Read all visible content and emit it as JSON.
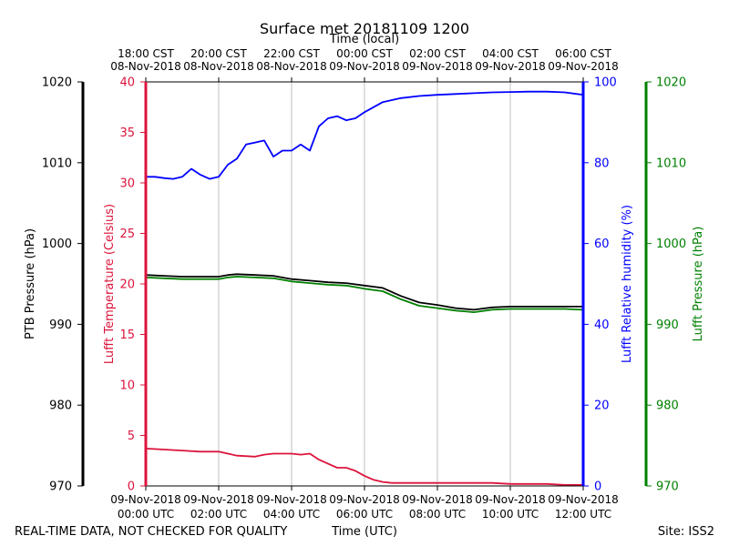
{
  "chart_data": {
    "type": "line",
    "title": "Surface met 20181109 1200",
    "top_axis_label": "Time (local)",
    "xlabel": "Time (UTC)",
    "footer_left": "REAL-TIME DATA, NOT CHECKED FOR QUALITY",
    "footer_right": "Site: ISS2",
    "x_range_hours": [
      0,
      12
    ],
    "x_ticks_utc": [
      {
        "hour": 0,
        "line1": "09-Nov-2018",
        "line2": "00:00 UTC"
      },
      {
        "hour": 2,
        "line1": "09-Nov-2018",
        "line2": "02:00 UTC"
      },
      {
        "hour": 4,
        "line1": "09-Nov-2018",
        "line2": "04:00 UTC"
      },
      {
        "hour": 6,
        "line1": "09-Nov-2018",
        "line2": "06:00 UTC"
      },
      {
        "hour": 8,
        "line1": "09-Nov-2018",
        "line2": "08:00 UTC"
      },
      {
        "hour": 10,
        "line1": "09-Nov-2018",
        "line2": "10:00 UTC"
      },
      {
        "hour": 12,
        "line1": "09-Nov-2018",
        "line2": "12:00 UTC"
      }
    ],
    "x_ticks_local": [
      {
        "hour": 0,
        "line1": "18:00 CST",
        "line2": "08-Nov-2018"
      },
      {
        "hour": 2,
        "line1": "20:00 CST",
        "line2": "08-Nov-2018"
      },
      {
        "hour": 4,
        "line1": "22:00 CST",
        "line2": "08-Nov-2018"
      },
      {
        "hour": 6,
        "line1": "00:00 CST",
        "line2": "09-Nov-2018"
      },
      {
        "hour": 8,
        "line1": "02:00 CST",
        "line2": "09-Nov-2018"
      },
      {
        "hour": 10,
        "line1": "04:00 CST",
        "line2": "09-Nov-2018"
      },
      {
        "hour": 12,
        "line1": "06:00 CST",
        "line2": "09-Nov-2018"
      }
    ],
    "axes": {
      "ptb_pressure": {
        "label": "PTB Pressure (hPa)",
        "ylim": [
          970,
          1020
        ],
        "ticks": [
          "970",
          "980",
          "990",
          "1000",
          "1010",
          "1020"
        ],
        "color": "#000000"
      },
      "temperature": {
        "label": "Lufft Temperature (Celsius)",
        "ylim": [
          0,
          40
        ],
        "ticks": [
          "0",
          "5",
          "10",
          "15",
          "20",
          "25",
          "30",
          "35",
          "40"
        ],
        "color": "#dc143c"
      },
      "humidity": {
        "label": "Lufft Relative humidity (%)",
        "ylim": [
          0,
          100
        ],
        "ticks": [
          "0",
          "20",
          "40",
          "60",
          "80",
          "100"
        ],
        "color": "#0000ff"
      },
      "lufft_pressure": {
        "label": "Lufft Pressure (hPa)",
        "ylim": [
          970,
          1020
        ],
        "ticks": [
          "970",
          "980",
          "990",
          "1000",
          "1010",
          "1020"
        ],
        "color": "#008000"
      }
    },
    "series": [
      {
        "name": "Lufft Relative humidity",
        "axis": "humidity",
        "color": "#0000ff",
        "x": [
          0,
          0.25,
          0.5,
          0.75,
          1.0,
          1.25,
          1.5,
          1.75,
          2.0,
          2.25,
          2.5,
          2.75,
          3.0,
          3.25,
          3.5,
          3.75,
          4.0,
          4.25,
          4.5,
          4.75,
          5.0,
          5.25,
          5.5,
          5.75,
          6.0,
          6.5,
          7.0,
          7.5,
          8.0,
          8.5,
          9.0,
          9.5,
          10.0,
          10.5,
          11.0,
          11.5,
          12.0
        ],
        "values": [
          76.5,
          76.5,
          76.2,
          76.0,
          76.5,
          78.5,
          77.0,
          76.0,
          76.5,
          79.5,
          81.0,
          84.5,
          85.0,
          85.5,
          81.5,
          83.0,
          83.0,
          84.5,
          83.0,
          89.0,
          91.0,
          91.5,
          90.5,
          91.0,
          92.5,
          95.0,
          96.0,
          96.5,
          96.8,
          97.0,
          97.2,
          97.4,
          97.5,
          97.6,
          97.6,
          97.4,
          96.8
        ]
      },
      {
        "name": "PTB Pressure",
        "axis": "ptb_pressure",
        "color": "#000000",
        "x": [
          0,
          0.5,
          1.0,
          1.5,
          2.0,
          2.25,
          2.5,
          3.0,
          3.5,
          4.0,
          4.5,
          5.0,
          5.5,
          6.0,
          6.5,
          7.0,
          7.5,
          8.0,
          8.5,
          9.0,
          9.5,
          10.0,
          10.5,
          11.0,
          11.5,
          12.0
        ],
        "values": [
          996.1,
          996.0,
          995.9,
          995.9,
          995.9,
          996.1,
          996.2,
          996.1,
          996.0,
          995.6,
          995.4,
          995.2,
          995.1,
          994.8,
          994.5,
          993.5,
          992.7,
          992.4,
          992.0,
          991.8,
          992.1,
          992.2,
          992.2,
          992.2,
          992.2,
          992.2
        ]
      },
      {
        "name": "Lufft Pressure",
        "axis": "lufft_pressure",
        "color": "#008000",
        "x": [
          0,
          0.5,
          1.0,
          1.5,
          2.0,
          2.25,
          2.5,
          3.0,
          3.5,
          4.0,
          4.5,
          5.0,
          5.5,
          6.0,
          6.5,
          7.0,
          7.5,
          8.0,
          8.5,
          9.0,
          9.5,
          10.0,
          10.5,
          11.0,
          11.5,
          12.0
        ],
        "values": [
          995.8,
          995.7,
          995.6,
          995.6,
          995.6,
          995.8,
          995.9,
          995.8,
          995.7,
          995.3,
          995.1,
          994.9,
          994.8,
          994.4,
          994.1,
          993.1,
          992.3,
          992.0,
          991.7,
          991.5,
          991.8,
          991.9,
          991.9,
          991.9,
          991.9,
          991.8
        ]
      },
      {
        "name": "Lufft Temperature",
        "axis": "temperature",
        "color": "#dc143c",
        "x": [
          0,
          0.5,
          1.0,
          1.5,
          2.0,
          2.25,
          2.5,
          3.0,
          3.25,
          3.5,
          4.0,
          4.25,
          4.5,
          4.75,
          5.0,
          5.25,
          5.5,
          5.75,
          6.0,
          6.25,
          6.5,
          6.75,
          7.0,
          7.5,
          8.0,
          8.5,
          9.0,
          9.5,
          10.0,
          10.5,
          11.0,
          11.5,
          12.0
        ],
        "values": [
          3.7,
          3.6,
          3.5,
          3.4,
          3.4,
          3.2,
          3.0,
          2.9,
          3.1,
          3.2,
          3.2,
          3.1,
          3.2,
          2.6,
          2.2,
          1.8,
          1.8,
          1.5,
          1.0,
          0.6,
          0.4,
          0.3,
          0.3,
          0.3,
          0.3,
          0.3,
          0.3,
          0.3,
          0.2,
          0.2,
          0.2,
          0.1,
          0.1
        ]
      }
    ]
  }
}
